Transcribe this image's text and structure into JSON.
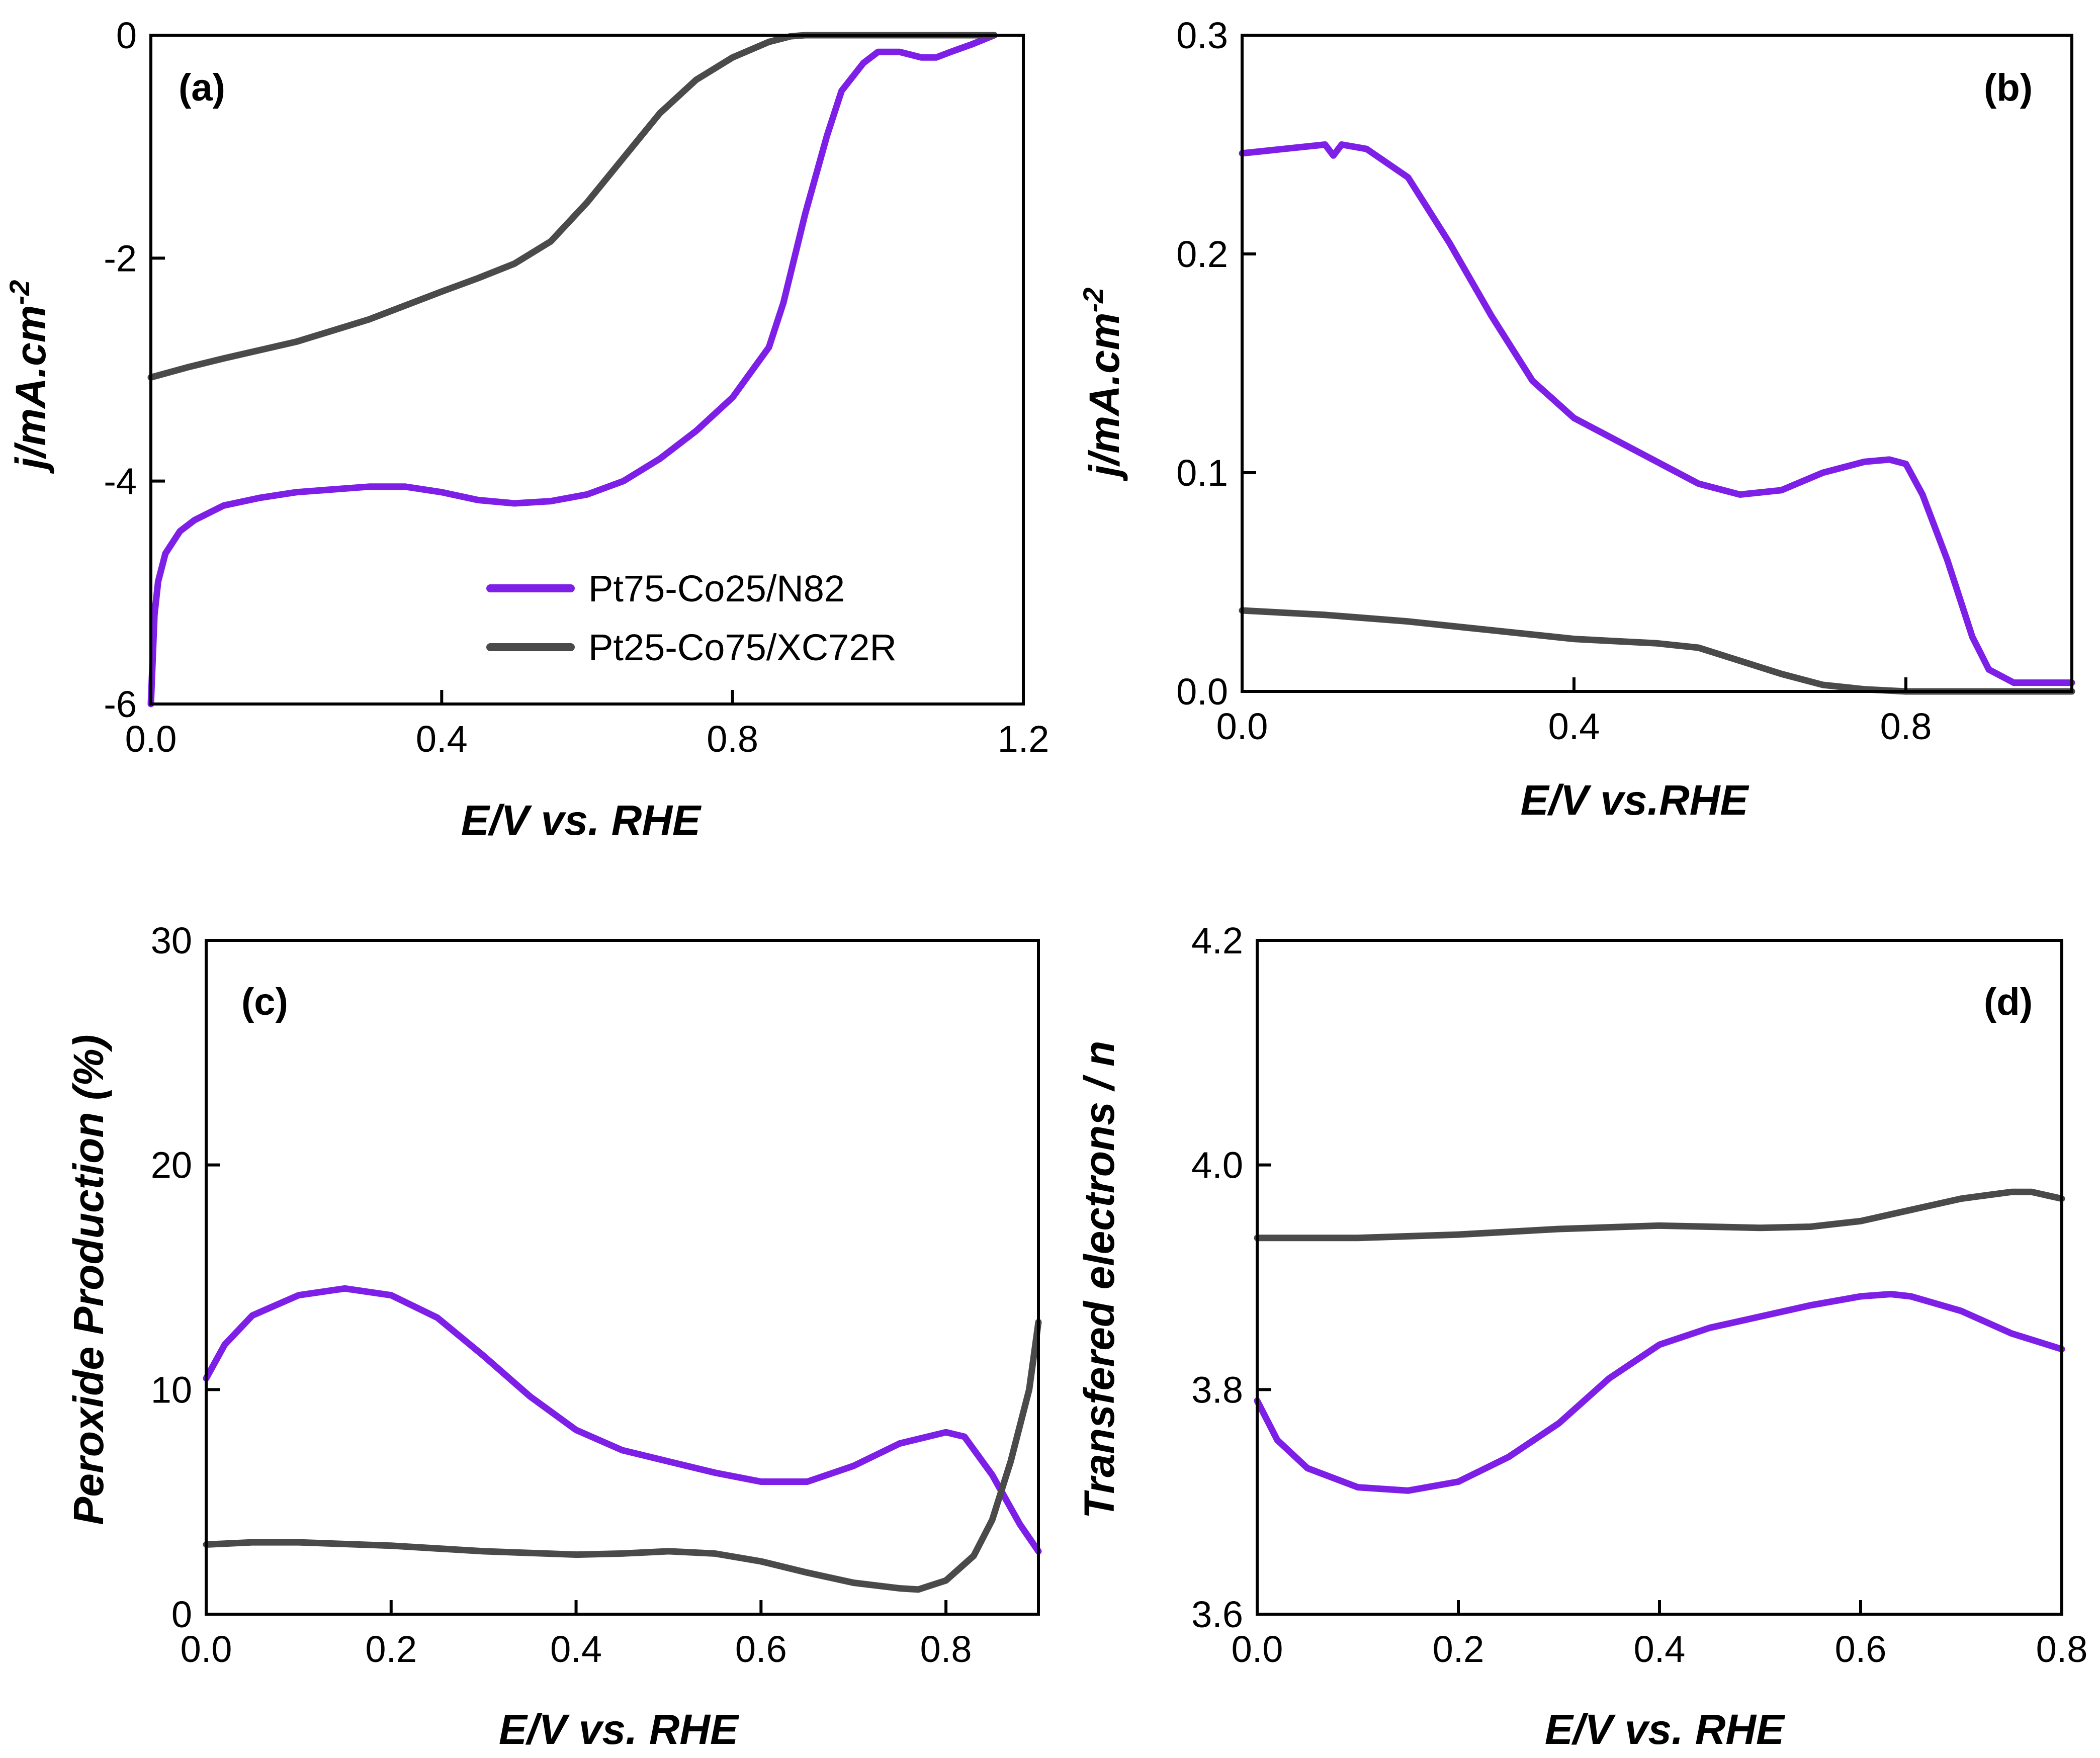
{
  "colors": {
    "purple": "#7e1fe8",
    "gray": "#4a4a4a",
    "axis": "#000000"
  },
  "legend": [
    {
      "name": "Pt75-Co25/N82",
      "color": "#7e1fe8"
    },
    {
      "name": "Pt25-Co75/XC72R",
      "color": "#4a4a4a"
    }
  ],
  "chart_data": [
    {
      "id": "a",
      "type": "line",
      "panel_label": "(a)",
      "xlabel": "E/V vs. RHE",
      "ylabel": "j/mA.cm",
      "ylabel_sup": "-2",
      "xlim": [
        0,
        1.2
      ],
      "ylim": [
        -6,
        0
      ],
      "xticks": [
        0,
        0.4,
        0.8,
        1.2
      ],
      "xtick_labels": [
        "0.0",
        "0.4",
        "0.8",
        "1.2"
      ],
      "yticks": [
        -6,
        -4,
        -2,
        0
      ],
      "ytick_labels": [
        "-6",
        "-4",
        "-2",
        "0"
      ],
      "legend_position": "lower-right",
      "series": [
        {
          "name": "Pt75-Co25/N82",
          "color": "#7e1fe8",
          "x": [
            0.0,
            0.005,
            0.01,
            0.02,
            0.04,
            0.06,
            0.1,
            0.15,
            0.2,
            0.3,
            0.35,
            0.4,
            0.45,
            0.5,
            0.55,
            0.6,
            0.65,
            0.7,
            0.75,
            0.8,
            0.85,
            0.87,
            0.9,
            0.93,
            0.95,
            0.98,
            1.0,
            1.03,
            1.06,
            1.08,
            1.1,
            1.13,
            1.16
          ],
          "y": [
            -6.0,
            -5.2,
            -4.9,
            -4.65,
            -4.45,
            -4.35,
            -4.22,
            -4.15,
            -4.1,
            -4.05,
            -4.05,
            -4.1,
            -4.17,
            -4.2,
            -4.18,
            -4.12,
            -4.0,
            -3.8,
            -3.55,
            -3.25,
            -2.8,
            -2.4,
            -1.6,
            -0.9,
            -0.5,
            -0.25,
            -0.15,
            -0.15,
            -0.2,
            -0.2,
            -0.15,
            -0.08,
            0.0
          ]
        },
        {
          "name": "Pt25-Co75/XC72R",
          "color": "#4a4a4a",
          "x": [
            0.0,
            0.05,
            0.1,
            0.2,
            0.3,
            0.4,
            0.45,
            0.5,
            0.55,
            0.6,
            0.65,
            0.7,
            0.75,
            0.8,
            0.85,
            0.88,
            0.9,
            0.95,
            1.0,
            1.1,
            1.16
          ],
          "y": [
            -3.07,
            -2.98,
            -2.9,
            -2.75,
            -2.55,
            -2.3,
            -2.18,
            -2.05,
            -1.85,
            -1.5,
            -1.1,
            -0.7,
            -0.4,
            -0.2,
            -0.06,
            -0.01,
            0.0,
            0.0,
            0.0,
            0.0,
            0.0
          ]
        }
      ]
    },
    {
      "id": "b",
      "type": "line",
      "panel_label": "(b)",
      "xlabel": "E/V vs.RHE",
      "ylabel": "j/mA.cm",
      "ylabel_sup": "-2",
      "xlim": [
        0,
        1.0
      ],
      "ylim": [
        0,
        0.3
      ],
      "xticks": [
        0,
        0.4,
        0.8
      ],
      "xtick_labels": [
        "0.0",
        "0.4",
        "0.8"
      ],
      "yticks": [
        0,
        0.1,
        0.2,
        0.3
      ],
      "ytick_labels": [
        "0.0",
        "0.1",
        "0.2",
        "0.3"
      ],
      "series": [
        {
          "name": "Pt75-Co25/N82",
          "color": "#7e1fe8",
          "x": [
            0.0,
            0.05,
            0.1,
            0.11,
            0.12,
            0.15,
            0.2,
            0.25,
            0.3,
            0.35,
            0.4,
            0.45,
            0.5,
            0.55,
            0.6,
            0.65,
            0.7,
            0.75,
            0.78,
            0.8,
            0.82,
            0.85,
            0.88,
            0.9,
            0.93,
            0.95,
            1.0
          ],
          "y": [
            0.246,
            0.248,
            0.25,
            0.245,
            0.25,
            0.248,
            0.235,
            0.205,
            0.172,
            0.142,
            0.125,
            0.115,
            0.105,
            0.095,
            0.09,
            0.092,
            0.1,
            0.105,
            0.106,
            0.104,
            0.09,
            0.06,
            0.025,
            0.01,
            0.004,
            0.004,
            0.004
          ]
        },
        {
          "name": "Pt25-Co75/XC72R",
          "color": "#4a4a4a",
          "x": [
            0.0,
            0.1,
            0.2,
            0.3,
            0.4,
            0.45,
            0.5,
            0.55,
            0.6,
            0.65,
            0.7,
            0.75,
            0.8,
            0.9,
            1.0
          ],
          "y": [
            0.037,
            0.035,
            0.032,
            0.028,
            0.024,
            0.023,
            0.022,
            0.02,
            0.014,
            0.008,
            0.003,
            0.001,
            0.0,
            0.0,
            0.0
          ]
        }
      ]
    },
    {
      "id": "c",
      "type": "line",
      "panel_label": "(c)",
      "xlabel": "E/V vs. RHE",
      "ylabel": "Peroxide Production (%)",
      "xlim": [
        0,
        0.9
      ],
      "ylim": [
        0,
        30
      ],
      "xticks": [
        0,
        0.2,
        0.4,
        0.6,
        0.8
      ],
      "xtick_labels": [
        "0.0",
        "0.2",
        "0.4",
        "0.6",
        "0.8"
      ],
      "yticks": [
        0,
        10,
        20,
        30
      ],
      "ytick_labels": [
        "0",
        "10",
        "20",
        "30"
      ],
      "series": [
        {
          "name": "Pt75-Co25/N82",
          "color": "#7e1fe8",
          "x": [
            0.0,
            0.02,
            0.05,
            0.1,
            0.15,
            0.2,
            0.25,
            0.3,
            0.35,
            0.4,
            0.45,
            0.5,
            0.55,
            0.6,
            0.65,
            0.7,
            0.75,
            0.8,
            0.82,
            0.85,
            0.88,
            0.9
          ],
          "y": [
            10.5,
            12.0,
            13.3,
            14.2,
            14.5,
            14.2,
            13.2,
            11.5,
            9.7,
            8.2,
            7.3,
            6.8,
            6.3,
            5.9,
            5.9,
            6.6,
            7.6,
            8.1,
            7.9,
            6.2,
            4.0,
            2.8
          ]
        },
        {
          "name": "Pt25-Co75/XC72R",
          "color": "#4a4a4a",
          "x": [
            0.0,
            0.05,
            0.1,
            0.2,
            0.3,
            0.4,
            0.45,
            0.5,
            0.55,
            0.6,
            0.65,
            0.7,
            0.75,
            0.77,
            0.8,
            0.83,
            0.85,
            0.87,
            0.89,
            0.9
          ],
          "y": [
            3.1,
            3.2,
            3.2,
            3.05,
            2.8,
            2.65,
            2.7,
            2.8,
            2.7,
            2.35,
            1.85,
            1.4,
            1.15,
            1.1,
            1.5,
            2.6,
            4.2,
            6.8,
            10.0,
            13.0
          ]
        }
      ]
    },
    {
      "id": "d",
      "type": "line",
      "panel_label": "(d)",
      "xlabel": "E/V vs. RHE",
      "ylabel": "Transfered electrons / n",
      "xlim": [
        0,
        0.8
      ],
      "ylim": [
        3.6,
        4.2
      ],
      "xticks": [
        0,
        0.2,
        0.4,
        0.6,
        0.8
      ],
      "xtick_labels": [
        "0.0",
        "0.2",
        "0.4",
        "0.6",
        "0.8"
      ],
      "yticks": [
        3.6,
        3.8,
        4.0,
        4.2
      ],
      "ytick_labels": [
        "3.6",
        "3.8",
        "4.0",
        "4.2"
      ],
      "series": [
        {
          "name": "Pt75-Co25/N82",
          "color": "#7e1fe8",
          "x": [
            0.0,
            0.02,
            0.05,
            0.1,
            0.15,
            0.2,
            0.25,
            0.3,
            0.35,
            0.4,
            0.45,
            0.5,
            0.55,
            0.6,
            0.63,
            0.65,
            0.7,
            0.75,
            0.8
          ],
          "y": [
            3.79,
            3.755,
            3.73,
            3.713,
            3.71,
            3.718,
            3.74,
            3.77,
            3.81,
            3.84,
            3.855,
            3.865,
            3.875,
            3.883,
            3.885,
            3.883,
            3.87,
            3.85,
            3.836
          ]
        },
        {
          "name": "Pt25-Co75/XC72R",
          "color": "#4a4a4a",
          "x": [
            0.0,
            0.1,
            0.2,
            0.3,
            0.4,
            0.5,
            0.55,
            0.6,
            0.65,
            0.7,
            0.75,
            0.77,
            0.8
          ],
          "y": [
            3.935,
            3.935,
            3.938,
            3.943,
            3.946,
            3.944,
            3.945,
            3.95,
            3.96,
            3.97,
            3.976,
            3.976,
            3.97
          ]
        }
      ]
    }
  ]
}
